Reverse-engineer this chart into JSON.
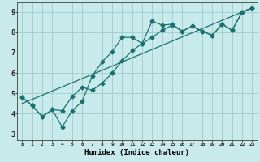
{
  "xlabel": "Humidex (Indice chaleur)",
  "xlim": [
    -0.5,
    23.5
  ],
  "ylim": [
    2.7,
    9.45
  ],
  "xticks": [
    0,
    1,
    2,
    3,
    4,
    5,
    6,
    7,
    8,
    9,
    10,
    11,
    12,
    13,
    14,
    15,
    16,
    17,
    18,
    19,
    20,
    21,
    22,
    23
  ],
  "yticks": [
    3,
    4,
    5,
    6,
    7,
    8,
    9
  ],
  "bg_color": "#c8eaea",
  "grid_color": "#a0cccc",
  "line_color": "#1a7070",
  "line1_x": [
    0,
    1,
    2,
    3,
    4,
    5,
    6,
    7,
    8,
    9,
    10,
    11,
    12,
    13,
    14,
    15,
    16,
    17,
    18,
    19,
    20,
    21,
    22,
    23
  ],
  "line1_y": [
    4.8,
    4.4,
    3.85,
    4.2,
    3.35,
    4.15,
    4.6,
    5.85,
    6.55,
    7.05,
    7.75,
    7.75,
    7.45,
    8.55,
    8.35,
    8.4,
    8.05,
    8.3,
    8.05,
    7.85,
    8.4,
    8.1,
    9.0,
    9.2
  ],
  "line2_x": [
    0,
    1,
    2,
    3,
    4,
    5,
    6,
    7,
    8,
    9,
    10,
    11,
    12,
    13,
    14,
    15,
    16,
    17,
    18,
    19,
    20,
    21,
    22,
    23
  ],
  "line2_y": [
    4.8,
    4.4,
    3.85,
    4.2,
    4.15,
    4.85,
    5.3,
    5.15,
    5.5,
    6.0,
    6.6,
    7.1,
    7.45,
    7.75,
    8.1,
    8.35,
    8.05,
    8.3,
    8.05,
    7.85,
    8.4,
    8.1,
    9.0,
    9.2
  ],
  "line3_x": [
    0,
    23
  ],
  "line3_y": [
    4.5,
    9.2
  ],
  "marker_size": 2.5,
  "linewidth": 0.9
}
